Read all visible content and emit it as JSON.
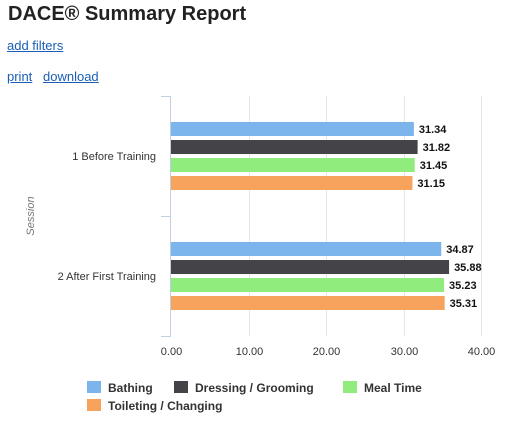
{
  "header": {
    "title": "DACE® Summary Report",
    "add_filters": "add filters",
    "print": "print",
    "download": "download"
  },
  "chart_data": {
    "type": "bar",
    "orientation": "horizontal",
    "categories": [
      "1 Before Training",
      "2 After First Training"
    ],
    "ylabel": "Session",
    "xlim": [
      0,
      40
    ],
    "xticks": [
      "0.00",
      "10.00",
      "20.00",
      "30.00",
      "40.00"
    ],
    "grid": true,
    "legend": "bottom",
    "series": [
      {
        "name": "Bathing",
        "color": "#7cb5ec",
        "values": [
          31.34,
          34.87
        ],
        "labels": [
          "31.34",
          "34.87"
        ]
      },
      {
        "name": "Dressing / Grooming",
        "color": "#434348",
        "values": [
          31.82,
          35.88
        ],
        "labels": [
          "31.82",
          "35.88"
        ]
      },
      {
        "name": "Meal Time",
        "color": "#90ed7d",
        "values": [
          31.45,
          35.23
        ],
        "labels": [
          "31.45",
          "35.23"
        ]
      },
      {
        "name": "Toileting / Changing",
        "color": "#f7a35c",
        "values": [
          31.15,
          35.31
        ],
        "labels": [
          "31.15",
          "35.31"
        ]
      }
    ]
  }
}
